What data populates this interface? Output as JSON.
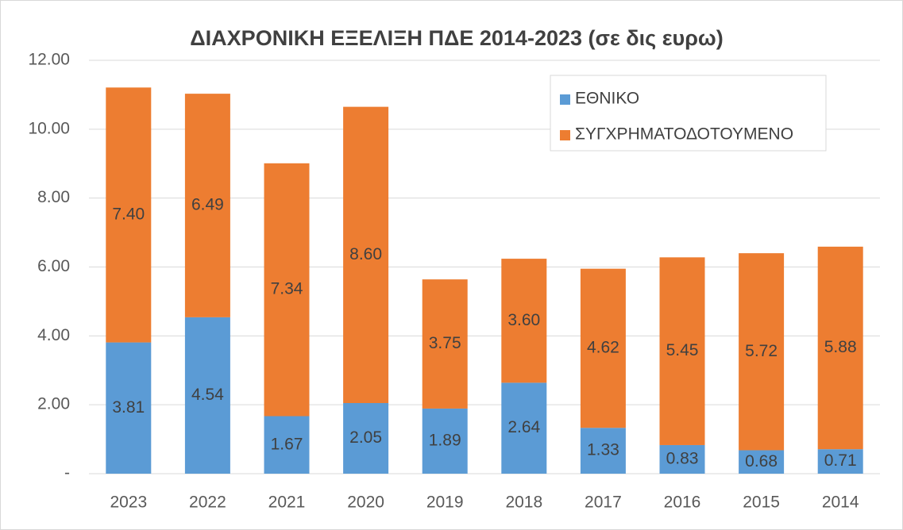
{
  "chart_data": {
    "type": "stacked_bar",
    "title": "ΔΙΑΧΡΟΝΙΚΗ ΕΞΕΛΙΞΗ ΠΔΕ 2014-2023 (σε δις ευρω)",
    "categories": [
      "2023",
      "2022",
      "2021",
      "2020",
      "2019",
      "2018",
      "2017",
      "2016",
      "2015",
      "2014"
    ],
    "series": [
      {
        "name": "ΕΘΝΙΚΟ",
        "color": "#5b9bd5",
        "values": [
          3.81,
          4.54,
          1.67,
          2.05,
          1.89,
          2.64,
          1.33,
          0.83,
          0.68,
          0.71
        ],
        "value_labels": [
          "3.81",
          "4.54",
          "1.67",
          "2.05",
          "1.89",
          "2.64",
          "1.33",
          "0.83",
          "0.68",
          "0.71"
        ]
      },
      {
        "name": "ΣΥΓΧΡΗΜΑΤΟΔΟΤΟΥΜΕΝΟ",
        "color": "#ed7d31",
        "values": [
          7.4,
          6.49,
          7.34,
          8.6,
          3.75,
          3.6,
          4.62,
          5.45,
          5.72,
          5.88
        ],
        "value_labels": [
          "7.40",
          "6.49",
          "7.34",
          "8.60",
          "3.75",
          "3.60",
          "4.62",
          "5.45",
          "5.72",
          "5.88"
        ]
      }
    ],
    "ylim": [
      0,
      12
    ],
    "yticks": [
      {
        "value": 0,
        "label": "-"
      },
      {
        "value": 2,
        "label": "2.00"
      },
      {
        "value": 4,
        "label": "4.00"
      },
      {
        "value": 6,
        "label": "6.00"
      },
      {
        "value": 8,
        "label": "8.00"
      },
      {
        "value": 10,
        "label": "10.00"
      },
      {
        "value": 12,
        "label": "12.00"
      }
    ],
    "grid": true,
    "legend": "top-right"
  }
}
